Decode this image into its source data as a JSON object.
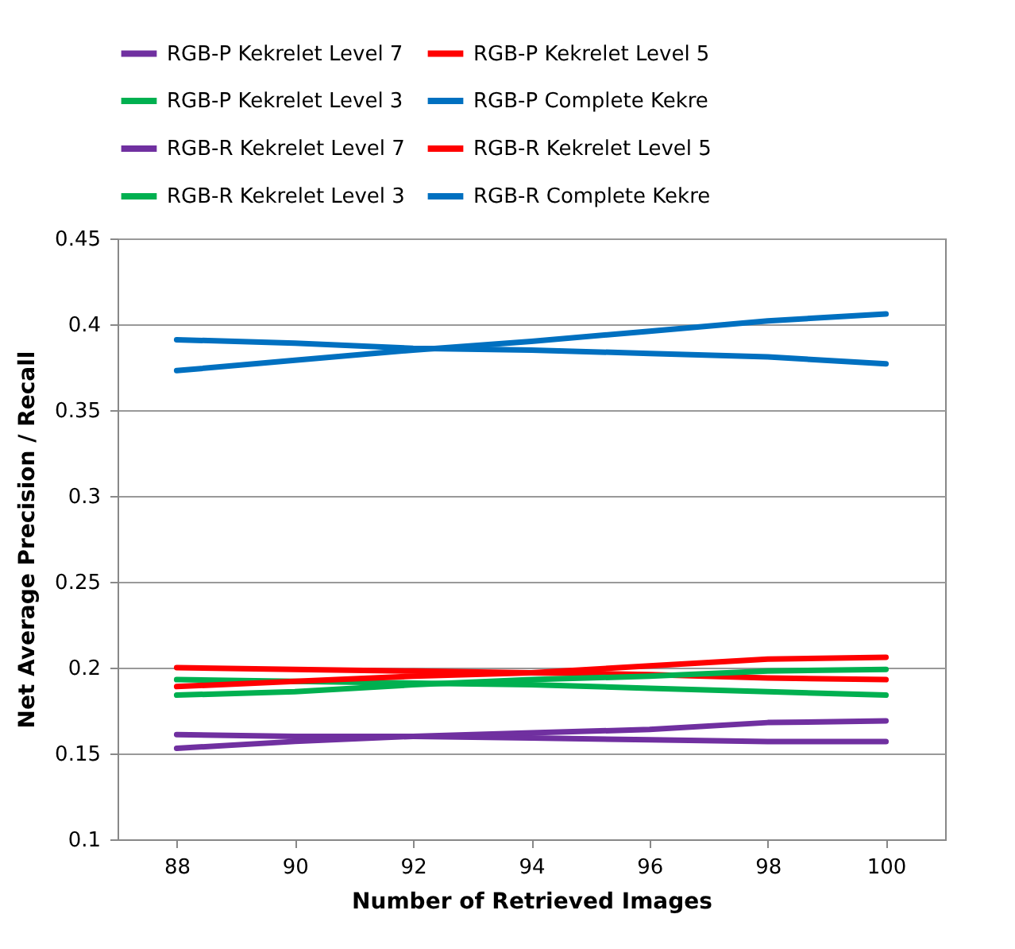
{
  "chart_data": {
    "type": "line",
    "xlabel": "Number of Retrieved Images",
    "ylabel": "Net Average Precision / Recall",
    "categories": [
      "88",
      "90",
      "92",
      "94",
      "96",
      "98",
      "100"
    ],
    "series": [
      {
        "name": "RGB-P Kekrelet Level 7",
        "color": "#7030a0",
        "values": [
          0.161,
          0.16,
          0.16,
          0.159,
          0.158,
          0.157,
          0.157
        ]
      },
      {
        "name": "RGB-P Kekrelet Level 5",
        "color": "#ff0000",
        "values": [
          0.2,
          0.199,
          0.198,
          0.197,
          0.196,
          0.194,
          0.193
        ]
      },
      {
        "name": "RGB-P Kekrelet Level 3",
        "color": "#00b050",
        "values": [
          0.193,
          0.192,
          0.191,
          0.19,
          0.188,
          0.186,
          0.184
        ]
      },
      {
        "name": "RGB-P Complete Kekre",
        "color": "#0070c0",
        "values": [
          0.391,
          0.389,
          0.386,
          0.385,
          0.383,
          0.381,
          0.377
        ]
      },
      {
        "name": "RGB-R Kekrelet Level 7",
        "color": "#7030a0",
        "values": [
          0.153,
          0.157,
          0.16,
          0.162,
          0.164,
          0.168,
          0.169
        ]
      },
      {
        "name": "RGB-R Kekrelet Level 5",
        "color": "#ff0000",
        "values": [
          0.189,
          0.192,
          0.195,
          0.197,
          0.201,
          0.205,
          0.206
        ]
      },
      {
        "name": "RGB-R Kekrelet Level 3",
        "color": "#00b050",
        "values": [
          0.184,
          0.186,
          0.19,
          0.193,
          0.195,
          0.198,
          0.199
        ]
      },
      {
        "name": "RGB-R Complete Kekre",
        "color": "#0070c0",
        "values": [
          0.373,
          0.379,
          0.385,
          0.39,
          0.396,
          0.402,
          0.406
        ]
      }
    ],
    "ylim": [
      0.1,
      0.45
    ],
    "yticks": [
      0.1,
      0.15,
      0.2,
      0.25,
      0.3,
      0.35,
      0.4,
      0.45
    ],
    "grid": "y",
    "legend": "top"
  }
}
